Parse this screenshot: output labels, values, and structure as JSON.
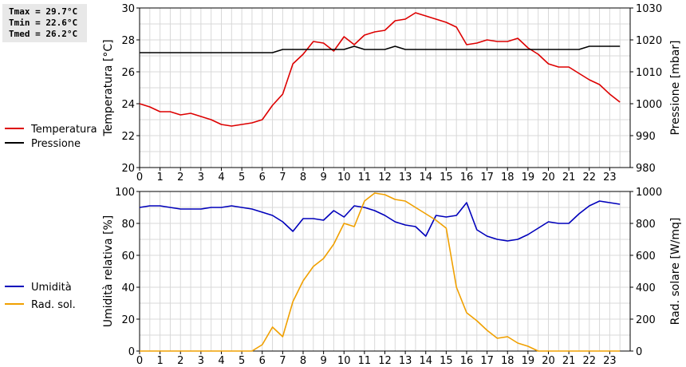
{
  "stats": {
    "tmax": "Tmax = 29.7°C",
    "tmin": "Tmin = 22.6°C",
    "tmed": "Tmed = 26.2°C"
  },
  "colors": {
    "temperature": "#dd0000",
    "pressure": "#000000",
    "humidity": "#0000bb",
    "radiation": "#f0a000",
    "grid": "#d8d8d8"
  },
  "chart_data": [
    {
      "type": "line",
      "xlabel": "",
      "ylabel": "Temperatura [°C]",
      "y2label": "Pressione [mbar]",
      "xlim": [
        0,
        24
      ],
      "ylim": [
        20,
        30
      ],
      "y2lim": [
        980,
        1030
      ],
      "xticks": [
        "0",
        "1",
        "2",
        "3",
        "4",
        "5",
        "6",
        "7",
        "8",
        "9",
        "10",
        "11",
        "12",
        "13",
        "14",
        "15",
        "16",
        "17",
        "18",
        "19",
        "20",
        "21",
        "22",
        "23"
      ],
      "yticks": [
        "20",
        "22",
        "24",
        "26",
        "28",
        "30"
      ],
      "y2ticks": [
        "980",
        "990",
        "1000",
        "1010",
        "1020",
        "1030"
      ],
      "grid": true,
      "legend_position": "left",
      "series": [
        {
          "name": "Temperatura",
          "axis": "left",
          "x": [
            0,
            0.5,
            1,
            1.5,
            2,
            2.5,
            3,
            3.5,
            4,
            4.5,
            5,
            5.5,
            6,
            6.5,
            7,
            7.5,
            8,
            8.5,
            9,
            9.5,
            10,
            10.5,
            11,
            11.5,
            12,
            12.5,
            13,
            13.5,
            14,
            14.5,
            15,
            15.5,
            16,
            16.5,
            17,
            17.5,
            18,
            18.5,
            19,
            19.5,
            20,
            20.5,
            21,
            21.5,
            22,
            22.5,
            23,
            23.5
          ],
          "y": [
            24.0,
            23.8,
            23.5,
            23.5,
            23.3,
            23.4,
            23.2,
            23.0,
            22.7,
            22.6,
            22.7,
            22.8,
            23.0,
            23.9,
            24.6,
            26.5,
            27.1,
            27.9,
            27.8,
            27.3,
            28.2,
            27.7,
            28.3,
            28.5,
            28.6,
            29.2,
            29.3,
            29.7,
            29.5,
            29.3,
            29.1,
            28.8,
            27.7,
            27.8,
            28.0,
            27.9,
            27.9,
            28.1,
            27.5,
            27.1,
            26.5,
            26.3,
            26.3,
            25.9,
            25.5,
            25.2,
            24.6,
            24.1
          ]
        },
        {
          "name": "Pressione",
          "axis": "right",
          "x": [
            0,
            0.5,
            1,
            1.5,
            2,
            2.5,
            3,
            3.5,
            4,
            4.5,
            5,
            5.5,
            6,
            6.5,
            7,
            7.5,
            8,
            8.5,
            9,
            9.5,
            10,
            10.5,
            11,
            11.5,
            12,
            12.5,
            13,
            13.5,
            14,
            14.5,
            15,
            15.5,
            16,
            16.5,
            17,
            17.5,
            18,
            18.5,
            19,
            19.5,
            20,
            20.5,
            21,
            21.5,
            22,
            22.5,
            23,
            23.5
          ],
          "y": [
            1016,
            1016,
            1016,
            1016,
            1016,
            1016,
            1016,
            1016,
            1016,
            1016,
            1016,
            1016,
            1016,
            1016,
            1017,
            1017,
            1017,
            1017,
            1017,
            1017,
            1017,
            1018,
            1017,
            1017,
            1017,
            1018,
            1017,
            1017,
            1017,
            1017,
            1017,
            1017,
            1017,
            1017,
            1017,
            1017,
            1017,
            1017,
            1017,
            1017,
            1017,
            1017,
            1017,
            1017,
            1018,
            1018,
            1018,
            1018
          ]
        }
      ]
    },
    {
      "type": "line",
      "xlabel": "",
      "ylabel": "Umidità relativa [%]",
      "y2label": "Rad. solare [W/mq]",
      "xlim": [
        0,
        24
      ],
      "ylim": [
        0,
        100
      ],
      "y2lim": [
        0,
        1000
      ],
      "xticks": [
        "0",
        "1",
        "2",
        "3",
        "4",
        "5",
        "6",
        "7",
        "8",
        "9",
        "10",
        "11",
        "12",
        "13",
        "14",
        "15",
        "16",
        "17",
        "18",
        "19",
        "20",
        "21",
        "22",
        "23"
      ],
      "yticks": [
        "0",
        "20",
        "40",
        "60",
        "80",
        "100"
      ],
      "y2ticks": [
        "0",
        "200",
        "400",
        "600",
        "800",
        "1000"
      ],
      "grid": true,
      "legend_position": "left",
      "series": [
        {
          "name": "Umidità",
          "axis": "left",
          "x": [
            0,
            0.5,
            1,
            1.5,
            2,
            2.5,
            3,
            3.5,
            4,
            4.5,
            5,
            5.5,
            6,
            6.5,
            7,
            7.5,
            8,
            8.5,
            9,
            9.5,
            10,
            10.5,
            11,
            11.5,
            12,
            12.5,
            13,
            13.5,
            14,
            14.5,
            15,
            15.5,
            16,
            16.5,
            17,
            17.5,
            18,
            18.5,
            19,
            19.5,
            20,
            20.5,
            21,
            21.5,
            22,
            22.5,
            23,
            23.5
          ],
          "y": [
            90,
            91,
            91,
            90,
            89,
            89,
            89,
            90,
            90,
            91,
            90,
            89,
            87,
            85,
            81,
            75,
            83,
            83,
            82,
            88,
            84,
            91,
            90,
            88,
            85,
            81,
            79,
            78,
            72,
            85,
            84,
            85,
            93,
            76,
            72,
            70,
            69,
            70,
            73,
            77,
            81,
            80,
            80,
            86,
            91,
            94,
            93,
            92
          ]
        },
        {
          "name": "Rad. sol.",
          "axis": "right",
          "x": [
            0,
            0.5,
            1,
            1.5,
            2,
            2.5,
            3,
            3.5,
            4,
            4.5,
            5,
            5.5,
            6,
            6.5,
            7,
            7.5,
            8,
            8.5,
            9,
            9.5,
            10,
            10.5,
            11,
            11.5,
            12,
            12.5,
            13,
            13.5,
            14,
            14.5,
            15,
            15.5,
            16,
            16.5,
            17,
            17.5,
            18,
            18.5,
            19,
            19.5,
            20,
            20.5,
            21,
            21.5,
            22,
            22.5,
            23,
            23.5
          ],
          "y": [
            0,
            0,
            0,
            0,
            0,
            0,
            0,
            0,
            0,
            0,
            0,
            0,
            40,
            150,
            90,
            310,
            440,
            530,
            580,
            670,
            800,
            780,
            940,
            990,
            980,
            950,
            940,
            900,
            860,
            820,
            770,
            400,
            240,
            190,
            130,
            80,
            90,
            50,
            30,
            0,
            0,
            0,
            0,
            0,
            0,
            0,
            0,
            0
          ]
        }
      ]
    }
  ]
}
